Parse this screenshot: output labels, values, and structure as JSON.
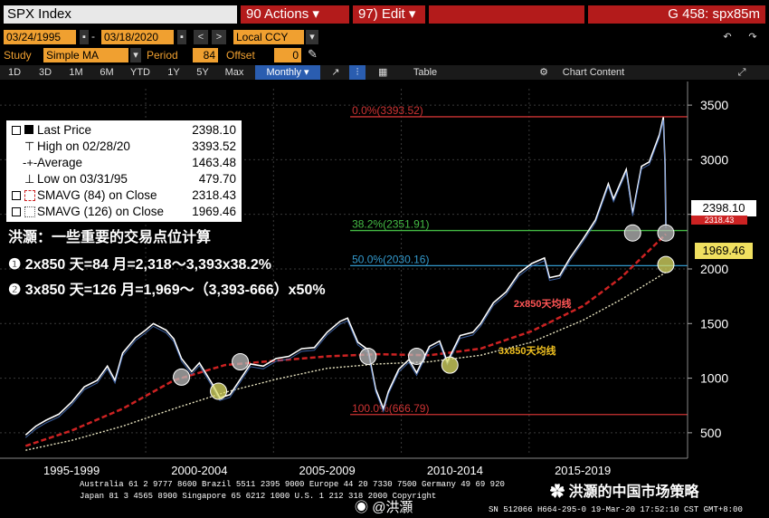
{
  "header": {
    "ticker": "SPX Index",
    "actions": "90 Actions ▾",
    "edit": "97) Edit ▾",
    "gtitle": "G 458: spx85m"
  },
  "controls": {
    "start_date": "03/24/1995",
    "end_date": "03/18/2020",
    "currency": "Local CCY",
    "study_label": "Study",
    "study_value": "Simple MA",
    "period_label": "Period",
    "period_value": "84",
    "offset_label": "Offset",
    "offset_value": "0"
  },
  "tabs": [
    "1D",
    "3D",
    "1M",
    "6M",
    "YTD",
    "1Y",
    "5Y",
    "Max",
    "Monthly ▾"
  ],
  "toolbar": {
    "table": "Table",
    "chart_content": "Chart Content"
  },
  "legend": {
    "rows": [
      {
        "k": "Last Price",
        "v": "2398.10"
      },
      {
        "k": "High on 02/28/20",
        "v": "3393.52"
      },
      {
        "k": "Average",
        "v": "1463.48"
      },
      {
        "k": "Low on 03/31/95",
        "v": "479.70"
      },
      {
        "k": "SMAVG (84)  on Close",
        "v": "2318.43"
      },
      {
        "k": "SMAVG (126)  on Close",
        "v": "1969.46"
      }
    ]
  },
  "annotations": {
    "title": "洪灝：一些重要的交易点位计算",
    "line1": "❶ 2x850 天=84 月=2,318～3,393x38.2%",
    "line2": "❷ 3x850 天=126 月=1,969～（3,393-666）x50%"
  },
  "colors": {
    "price": "#ffffff",
    "sma84": "#cc2222",
    "sma126": "#e8e4c0",
    "fib0": "#cc3333",
    "fib382": "#44bb44",
    "fib50": "#3399cc",
    "fib100": "#cc3333",
    "marker_gray": "#bbbbbb",
    "marker_yellow": "#dddd66"
  },
  "chart_data": {
    "type": "line",
    "x_labels": [
      "1995-1999",
      "2000-2004",
      "2005-2009",
      "2010-2014",
      "2015-2019"
    ],
    "yticks": [
      500,
      1000,
      1500,
      2000,
      2500,
      3000,
      3500
    ],
    "ylim": [
      300,
      3650
    ],
    "fib_levels": [
      {
        "label": "0.0%(3393.52)",
        "value": 3393.52
      },
      {
        "label": "38.2%(2351.91)",
        "value": 2351.91
      },
      {
        "label": "50.0%(2030.16)",
        "value": 2030.16
      },
      {
        "label": "100.0%(666.79)",
        "value": 666.79
      }
    ],
    "last_price_tag": "2398.10",
    "sma84_tag": "2318.43",
    "sma126_tag": "1969.46",
    "sma84_label": "2x850天均线",
    "sma126_label": "3x850天均线",
    "price": [
      [
        1995.2,
        480
      ],
      [
        1995.6,
        560
      ],
      [
        1996.0,
        615
      ],
      [
        1996.5,
        670
      ],
      [
        1997.0,
        780
      ],
      [
        1997.5,
        920
      ],
      [
        1998.0,
        980
      ],
      [
        1998.4,
        1110
      ],
      [
        1998.7,
        980
      ],
      [
        1999.0,
        1230
      ],
      [
        1999.5,
        1370
      ],
      [
        1999.9,
        1440
      ],
      [
        2000.2,
        1500
      ],
      [
        2000.7,
        1440
      ],
      [
        2001.0,
        1360
      ],
      [
        2001.3,
        1180
      ],
      [
        2001.7,
        1060
      ],
      [
        2002.0,
        1140
      ],
      [
        2002.5,
        950
      ],
      [
        2002.8,
        820
      ],
      [
        2003.2,
        850
      ],
      [
        2003.6,
        990
      ],
      [
        2004.0,
        1130
      ],
      [
        2004.5,
        1110
      ],
      [
        2005.0,
        1180
      ],
      [
        2005.5,
        1200
      ],
      [
        2006.0,
        1270
      ],
      [
        2006.5,
        1280
      ],
      [
        2007.0,
        1420
      ],
      [
        2007.5,
        1520
      ],
      [
        2007.8,
        1550
      ],
      [
        2008.2,
        1330
      ],
      [
        2008.6,
        1260
      ],
      [
        2008.9,
        900
      ],
      [
        2009.2,
        720
      ],
      [
        2009.4,
        880
      ],
      [
        2009.8,
        1080
      ],
      [
        2010.2,
        1170
      ],
      [
        2010.5,
        1050
      ],
      [
        2011.0,
        1290
      ],
      [
        2011.4,
        1340
      ],
      [
        2011.7,
        1150
      ],
      [
        2012.2,
        1390
      ],
      [
        2012.7,
        1420
      ],
      [
        2013.0,
        1500
      ],
      [
        2013.5,
        1690
      ],
      [
        2014.0,
        1790
      ],
      [
        2014.5,
        1960
      ],
      [
        2015.0,
        2050
      ],
      [
        2015.5,
        2100
      ],
      [
        2015.7,
        1920
      ],
      [
        2016.1,
        1940
      ],
      [
        2016.5,
        2100
      ],
      [
        2017.0,
        2270
      ],
      [
        2017.5,
        2450
      ],
      [
        2018.0,
        2780
      ],
      [
        2018.2,
        2640
      ],
      [
        2018.7,
        2910
      ],
      [
        2018.95,
        2510
      ],
      [
        2019.3,
        2940
      ],
      [
        2019.6,
        2980
      ],
      [
        2020.0,
        3230
      ],
      [
        2020.15,
        3390
      ],
      [
        2020.22,
        2950
      ],
      [
        2020.25,
        2398
      ]
    ],
    "sma84": [
      [
        1995.2,
        380
      ],
      [
        1997.0,
        520
      ],
      [
        1999.0,
        720
      ],
      [
        2001.0,
        980
      ],
      [
        2003.0,
        1120
      ],
      [
        2005.0,
        1160
      ],
      [
        2007.0,
        1200
      ],
      [
        2009.0,
        1220
      ],
      [
        2011.0,
        1210
      ],
      [
        2013.0,
        1270
      ],
      [
        2015.0,
        1430
      ],
      [
        2017.0,
        1660
      ],
      [
        2018.5,
        1920
      ],
      [
        2020.25,
        2318
      ]
    ],
    "sma126": [
      [
        1995.2,
        340
      ],
      [
        1997.0,
        430
      ],
      [
        1999.0,
        560
      ],
      [
        2001.0,
        720
      ],
      [
        2003.0,
        870
      ],
      [
        2005.0,
        990
      ],
      [
        2007.0,
        1090
      ],
      [
        2009.0,
        1130
      ],
      [
        2011.0,
        1150
      ],
      [
        2013.0,
        1210
      ],
      [
        2015.0,
        1330
      ],
      [
        2017.0,
        1530
      ],
      [
        2018.5,
        1720
      ],
      [
        2020.25,
        1969
      ]
    ],
    "markers": [
      {
        "x": 2001.3,
        "y": 1010,
        "kind": "gray"
      },
      {
        "x": 2002.75,
        "y": 880,
        "kind": "yellow"
      },
      {
        "x": 2003.6,
        "y": 1150,
        "kind": "gray"
      },
      {
        "x": 2008.6,
        "y": 1200,
        "kind": "gray"
      },
      {
        "x": 2010.5,
        "y": 1200,
        "kind": "gray"
      },
      {
        "x": 2011.8,
        "y": 1120,
        "kind": "yellow"
      },
      {
        "x": 2018.95,
        "y": 2330,
        "kind": "gray"
      },
      {
        "x": 2020.25,
        "y": 2330,
        "kind": "gray"
      },
      {
        "x": 2020.25,
        "y": 2040,
        "kind": "yellow"
      }
    ]
  },
  "footer": {
    "line1": "Australia 61 2 9777 8600 Brazil 5511 2395 9000 Europe 44 20 7330 7500 Germany 49 69 920",
    "line2": "Japan 81 3 4565 8900   Singapore 65 6212 1000   U.S. 1 212 318 2000      Copyright",
    "line3": "SN 512066 H664-295-0 19-Mar-20 17:52:10 CST  GMT+8:00",
    "watermark_left": "@洪灝",
    "watermark_right": "洪灝的中国市场策略"
  }
}
